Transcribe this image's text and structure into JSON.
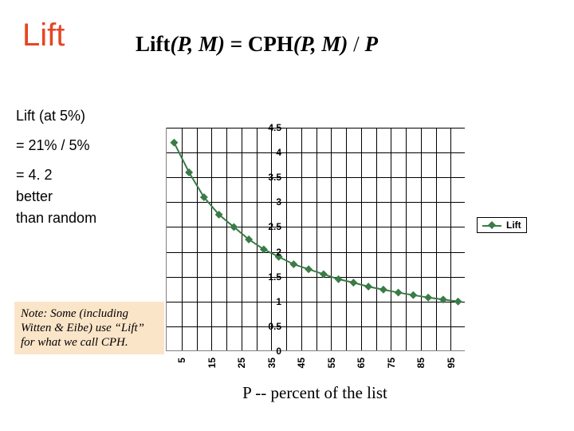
{
  "title": "Lift",
  "formula": {
    "lhs_func": "Lift",
    "lhs_args": "(P, M)",
    "eq": " = ",
    "rhs_func": "CPH",
    "rhs_args": "(P, M)",
    "div": "  /  ",
    "rhs_p": "P"
  },
  "calc": {
    "line1": "Lift (at 5%)",
    "line2": "= 21% / 5%",
    "line3": "= 4. 2",
    "line4": "better",
    "line5": "than random"
  },
  "note": "Note: Some (including Witten & Eibe) use “Lift” for what we call CPH.",
  "xaxis_title": "P -- percent of the list",
  "chart": {
    "type": "line",
    "series_name": "Lift",
    "line_color": "#3a7b48",
    "marker_color": "#3a7b48",
    "marker_size": 7,
    "line_width": 2,
    "plot_bg": "#ffffff",
    "grid_color": "#000000",
    "ylim": [
      0,
      4.5
    ],
    "ytick_step": 0.5,
    "yticks": [
      0,
      0.5,
      1,
      1.5,
      2,
      2.5,
      3,
      3.5,
      4,
      4.5
    ],
    "xticks": [
      5,
      15,
      25,
      35,
      45,
      55,
      65,
      75,
      85,
      95
    ],
    "x_values": [
      5,
      10,
      15,
      20,
      25,
      30,
      35,
      40,
      45,
      50,
      55,
      60,
      65,
      70,
      75,
      80,
      85,
      90,
      95,
      100
    ],
    "y_values": [
      4.2,
      3.6,
      3.1,
      2.75,
      2.5,
      2.25,
      2.05,
      1.9,
      1.75,
      1.65,
      1.55,
      1.45,
      1.38,
      1.3,
      1.24,
      1.18,
      1.13,
      1.08,
      1.04,
      1.0
    ],
    "tick_font_size": 12,
    "tick_font_weight": "bold"
  }
}
